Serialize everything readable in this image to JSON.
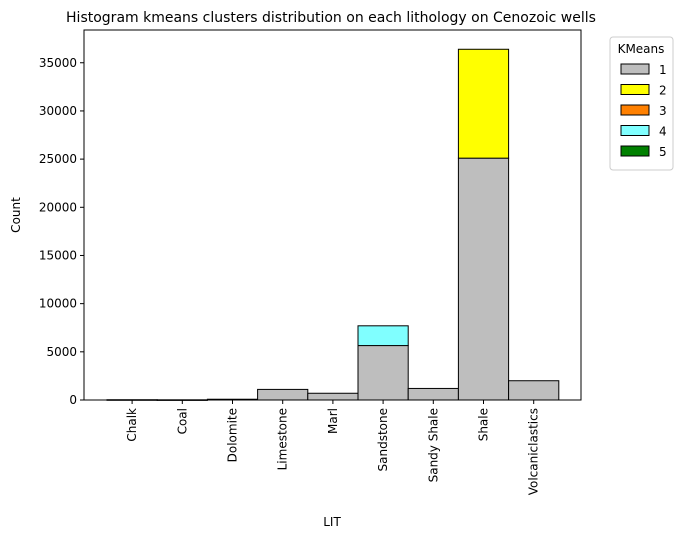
{
  "chart_data": {
    "type": "bar",
    "title": "Histogram kmeans clusters distribution on each lithology on Cenozoic wells",
    "xlabel": "LIT",
    "ylabel": "Count",
    "ylim": [
      0,
      38400
    ],
    "yticks": [
      0,
      5000,
      10000,
      15000,
      20000,
      25000,
      30000,
      35000
    ],
    "ytick_labels": [
      "0",
      "5000",
      "10000",
      "15000",
      "20000",
      "25000",
      "30000",
      "35000"
    ],
    "categories": [
      "Chalk",
      "Coal",
      "Dolomite",
      "Limestone",
      "Marl",
      "Sandstone",
      "Sandy Shale",
      "Shale",
      "Volcaniclastics"
    ],
    "stacked": true,
    "grid": false,
    "legend": {
      "title": "KMeans",
      "placement": "outside upper right"
    },
    "series": [
      {
        "name": "1",
        "color": "#bebebe",
        "values": [
          30,
          20,
          80,
          1100,
          700,
          5650,
          1200,
          25100,
          2000
        ]
      },
      {
        "name": "2",
        "color": "#ffff00",
        "values": [
          0,
          0,
          0,
          0,
          0,
          0,
          0,
          11300,
          0
        ]
      },
      {
        "name": "3",
        "color": "#ff8000",
        "values": [
          0,
          0,
          0,
          0,
          0,
          0,
          0,
          0,
          0
        ]
      },
      {
        "name": "4",
        "color": "#80ffff",
        "values": [
          0,
          0,
          0,
          0,
          0,
          2050,
          0,
          0,
          0
        ]
      },
      {
        "name": "5",
        "color": "#008000",
        "values": [
          0,
          0,
          0,
          0,
          0,
          0,
          0,
          0,
          0
        ]
      }
    ]
  }
}
